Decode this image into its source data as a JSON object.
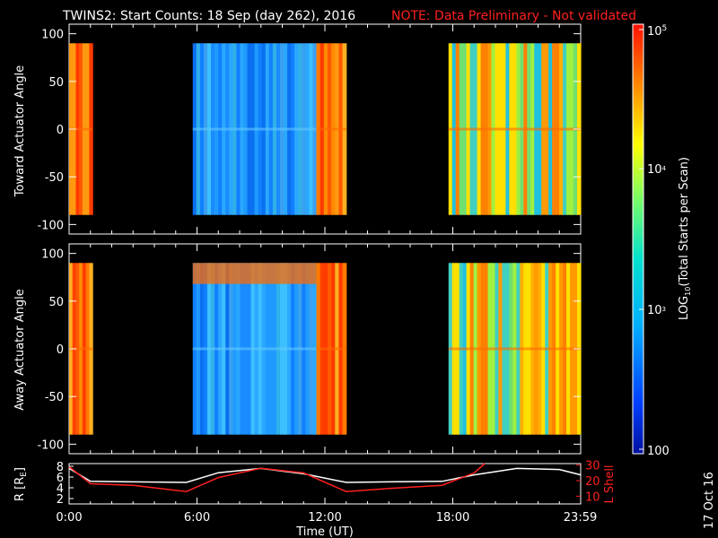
{
  "chart_data": [
    {
      "type": "heatmap",
      "panel": "top",
      "title": "TWINS2: Start Counts: 18 Sep (day 262), 2016",
      "note": "NOTE: Data Preliminary - Not validated",
      "ylabel": "Toward Actuator Angle",
      "ylim": [
        -110,
        110
      ],
      "yticks": [
        100,
        50,
        0,
        -50,
        -100
      ],
      "x_hours": [
        0,
        6,
        12,
        18,
        23.98
      ],
      "segments": [
        {
          "start_hour": 0.0,
          "end_hour": 1.1,
          "level": "high",
          "value": 40000
        },
        {
          "start_hour": 5.8,
          "end_hour": 11.6,
          "level": "low",
          "value": 1500
        },
        {
          "start_hour": 11.6,
          "end_hour": 13.0,
          "level": "high",
          "value": 40000
        },
        {
          "start_hour": 17.8,
          "end_hour": 24.0,
          "level": "mid",
          "value": 15000
        }
      ]
    },
    {
      "type": "heatmap",
      "panel": "middle",
      "ylabel": "Away Actuator Angle",
      "ylim": [
        -110,
        110
      ],
      "yticks": [
        100,
        50,
        0,
        -50,
        -100
      ],
      "segments": [
        {
          "start_hour": 0.0,
          "end_hour": 1.1,
          "level": "high",
          "value": 40000
        },
        {
          "start_hour": 5.8,
          "end_hour": 11.6,
          "level": "low",
          "value": 1200
        },
        {
          "start_hour": 11.6,
          "end_hour": 13.0,
          "level": "high",
          "value": 40000
        },
        {
          "start_hour": 17.8,
          "end_hour": 24.0,
          "level": "mid",
          "value": 15000
        }
      ]
    },
    {
      "type": "line",
      "panel": "bottom",
      "xlabel": "Time (UT)",
      "xtick_labels": [
        "0:00",
        "6:00",
        "12:00",
        "18:00",
        "23:59"
      ],
      "x_hours": [
        0,
        6,
        12,
        18,
        23.98
      ],
      "left_axis": {
        "label": "R [R",
        "label_sub": "E",
        "label_end": "]",
        "ticks": [
          8,
          6,
          4,
          2
        ],
        "ylim": [
          1,
          8.5
        ]
      },
      "right_axis": {
        "label": "L Shell",
        "ticks": [
          30,
          20,
          10
        ],
        "ylim": [
          5,
          31
        ]
      },
      "series": [
        {
          "name": "R",
          "axis": "left",
          "color": "#ffffff",
          "x": [
            0,
            1,
            3,
            5.5,
            7,
            9,
            11,
            13,
            15,
            17.5,
            19,
            21,
            23,
            24
          ],
          "y": [
            7.6,
            5.2,
            5.1,
            5.0,
            6.8,
            7.6,
            6.6,
            5.0,
            5.1,
            5.2,
            6.4,
            7.6,
            7.4,
            6.4
          ]
        },
        {
          "name": "L Shell",
          "axis": "right",
          "color": "#ff2020",
          "x": [
            0,
            1,
            3,
            5.5,
            7,
            9,
            11,
            13,
            15,
            17.5,
            19,
            19.5
          ],
          "y": [
            29,
            18,
            17,
            13,
            22,
            28,
            25,
            13,
            15,
            17,
            25,
            31
          ]
        }
      ]
    },
    {
      "type": "colorbar",
      "scale": "log",
      "label": "LOG",
      "label_sub": "10",
      "label_rest": "(Total Starts per Scan)",
      "range": [
        100,
        100000
      ],
      "tick_labels": [
        "10",
        "5",
        "10",
        "4",
        "10",
        "3",
        "100"
      ]
    }
  ],
  "footer": {
    "date_stamp": "17 Oct 16"
  }
}
